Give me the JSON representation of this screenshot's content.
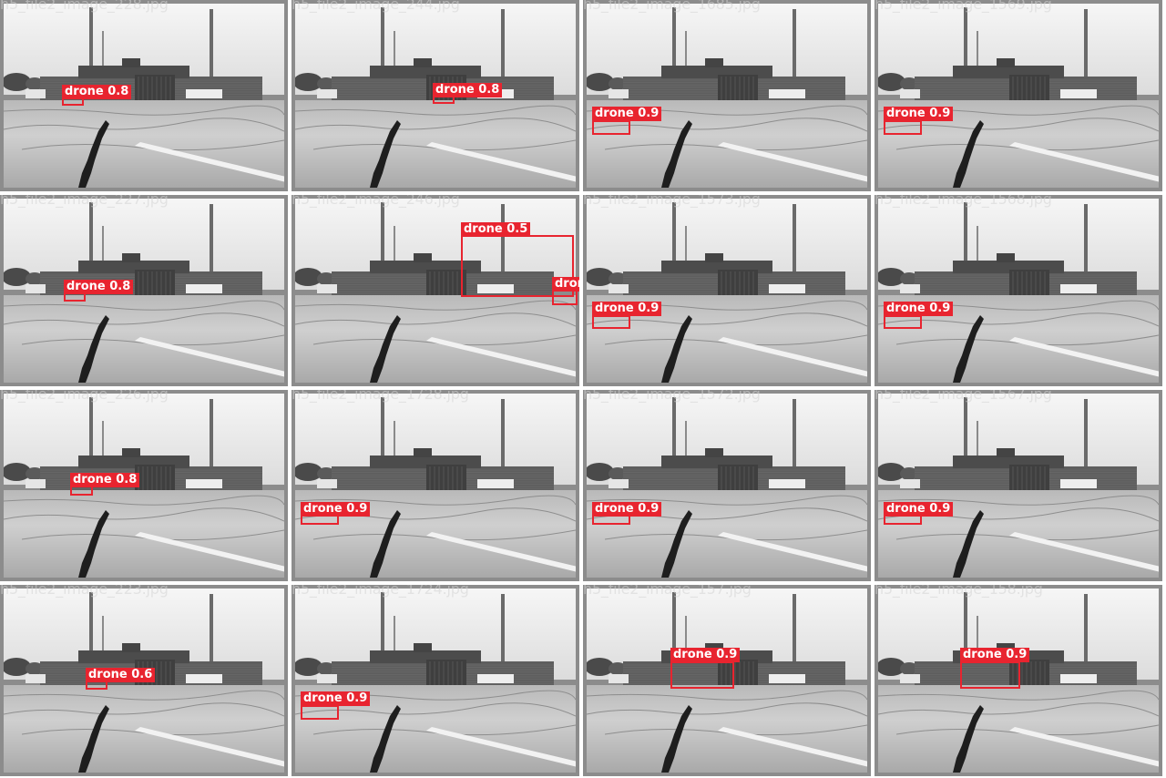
{
  "colors": {
    "detection": "#e8242f",
    "tile_border": "#8c8c8c"
  },
  "tiles": [
    {
      "filename": "h5_file2_image_228.jpg",
      "detections": [
        {
          "label": "drone 0.8"
        }
      ]
    },
    {
      "filename": "h5_file2_image_244.jpg",
      "detections": [
        {
          "label": "drone 0.8"
        }
      ]
    },
    {
      "filename": "h5_file2_image_1685.jpg",
      "detections": [
        {
          "label": "drone 0.9"
        }
      ]
    },
    {
      "filename": "h5_file2_image_1569.jpg",
      "detections": [
        {
          "label": "drone 0.9"
        }
      ]
    },
    {
      "filename": "h5_file2_image_227.jpg",
      "detections": [
        {
          "label": "drone 0.8"
        }
      ]
    },
    {
      "filename": "h5_file2_image_246.jpg",
      "detections": [
        {
          "label": "drone 0.5"
        },
        {
          "label": "drone"
        }
      ]
    },
    {
      "filename": "h5_file2_image_1573.jpg",
      "detections": [
        {
          "label": "drone 0.9"
        }
      ]
    },
    {
      "filename": "h5_file2_image_1568.jpg",
      "detections": [
        {
          "label": "drone 0.9"
        }
      ]
    },
    {
      "filename": "h5_file2_image_226.jpg",
      "detections": [
        {
          "label": "drone 0.8"
        }
      ]
    },
    {
      "filename": "h5_file2_image_1728.jpg",
      "detections": [
        {
          "label": "drone 0.9"
        }
      ]
    },
    {
      "filename": "h5_file2_image_1572.jpg",
      "detections": [
        {
          "label": "drone 0.9"
        }
      ]
    },
    {
      "filename": "h5_file2_image_1567.jpg",
      "detections": [
        {
          "label": "drone 0.9"
        }
      ]
    },
    {
      "filename": "h5_file2_image_223.jpg",
      "detections": [
        {
          "label": "drone 0.6"
        }
      ]
    },
    {
      "filename": "h5_file2_image_1724.jpg",
      "detections": [
        {
          "label": "drone 0.9"
        }
      ]
    },
    {
      "filename": "h5_file2_image_157.jpg",
      "detections": [
        {
          "label": "drone 0.9"
        }
      ]
    },
    {
      "filename": "h5_file2_image_158.jpg",
      "detections": [
        {
          "label": "drone 0.9"
        }
      ]
    }
  ]
}
